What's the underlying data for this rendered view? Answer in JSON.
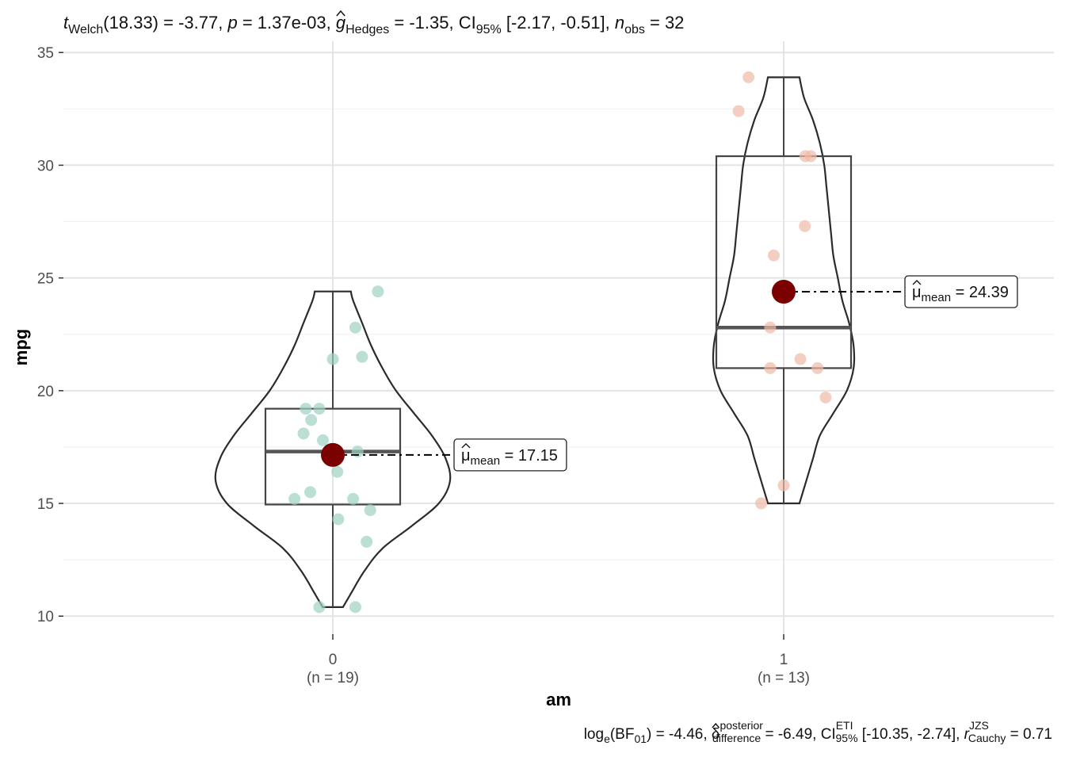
{
  "chart_data": {
    "type": "violin-box-scatter",
    "subtitle": {
      "t_part": "t",
      "t_sub": "Welch",
      "t_rest": "(18.33) = -3.77, ",
      "p_part": "p",
      "p_rest": " = 1.37e-03, ",
      "g_part": "g",
      "g_sub": "Hedges",
      "g_rest": " = -1.35, CI",
      "ci_sub": "95%",
      "ci_rest": " [-2.17, -0.51], ",
      "n_part": "n",
      "n_sub": "obs",
      "n_rest": " = 32"
    },
    "caption": {
      "part1": "log",
      "sub1": "e",
      "part2": "(BF",
      "sub2": "01",
      "part3": ") = -4.46, ",
      "delta": "δ",
      "delta_sup": "posterior",
      "delta_sub": "difference",
      "part4": " = -6.49, CI",
      "ci_sup": "ETI",
      "ci_sub": "95%",
      "part5": " [-10.35, -2.74], ",
      "r": "r",
      "r_sup": "JZS",
      "r_sub": "Cauchy",
      "part6": " = 0.71"
    },
    "xlabel": "am",
    "ylabel": "mpg",
    "ylim": [
      9.2,
      35.5
    ],
    "yticks": [
      10,
      15,
      20,
      25,
      30,
      35
    ],
    "grid": true,
    "groups": [
      {
        "category": "0",
        "n_label": "(n = 19)",
        "color": "#9fd2c3",
        "mean": 17.15,
        "mean_label_mu": "μ",
        "mean_label_sub": "mean",
        "mean_label_value": " = 17.15",
        "box": {
          "q1": 14.95,
          "median": 17.3,
          "q3": 19.2,
          "whisker_low": 10.4,
          "whisker_high": 24.4
        },
        "violin": [
          [
            10.4,
            0.045
          ],
          [
            11,
            0.08
          ],
          [
            12,
            0.14
          ],
          [
            13,
            0.22
          ],
          [
            14,
            0.35
          ],
          [
            15,
            0.47
          ],
          [
            16,
            0.52
          ],
          [
            17,
            0.5
          ],
          [
            18,
            0.44
          ],
          [
            19,
            0.36
          ],
          [
            20,
            0.28
          ],
          [
            21,
            0.22
          ],
          [
            22,
            0.17
          ],
          [
            23,
            0.13
          ],
          [
            24,
            0.09
          ],
          [
            24.4,
            0.08
          ]
        ],
        "points": [
          [
            0.1,
            24.4
          ],
          [
            0.05,
            22.8
          ],
          [
            0.065,
            21.5
          ],
          [
            0.0,
            21.4
          ],
          [
            -0.06,
            19.2
          ],
          [
            -0.03,
            19.2
          ],
          [
            -0.048,
            18.7
          ],
          [
            -0.065,
            18.1
          ],
          [
            -0.022,
            17.8
          ],
          [
            0.055,
            17.3
          ],
          [
            0.01,
            16.4
          ],
          [
            -0.05,
            15.5
          ],
          [
            0.045,
            15.2
          ],
          [
            -0.085,
            15.2
          ],
          [
            0.083,
            14.7
          ],
          [
            0.012,
            14.3
          ],
          [
            0.075,
            13.3
          ],
          [
            -0.03,
            10.4
          ],
          [
            0.05,
            10.4
          ]
        ]
      },
      {
        "category": "1",
        "n_label": "(n = 13)",
        "color": "#f0bba6",
        "mean": 24.39,
        "mean_label_mu": "μ",
        "mean_label_sub": "mean",
        "mean_label_value": " = 24.39",
        "box": {
          "q1": 21.0,
          "median": 22.8,
          "q3": 30.4,
          "whisker_low": 15.0,
          "whisker_high": 33.9
        },
        "violin": [
          [
            15,
            0.07
          ],
          [
            16,
            0.1
          ],
          [
            17,
            0.13
          ],
          [
            18,
            0.16
          ],
          [
            19,
            0.22
          ],
          [
            20,
            0.28
          ],
          [
            21,
            0.31
          ],
          [
            22,
            0.31
          ],
          [
            23,
            0.29
          ],
          [
            24,
            0.26
          ],
          [
            25,
            0.24
          ],
          [
            26,
            0.22
          ],
          [
            27,
            0.21
          ],
          [
            28,
            0.2
          ],
          [
            29,
            0.19
          ],
          [
            30,
            0.18
          ],
          [
            31,
            0.16
          ],
          [
            32,
            0.13
          ],
          [
            33,
            0.09
          ],
          [
            33.9,
            0.07
          ]
        ],
        "points": [
          [
            -0.078,
            33.9
          ],
          [
            -0.1,
            32.4
          ],
          [
            0.048,
            30.4
          ],
          [
            0.06,
            30.4
          ],
          [
            0.047,
            27.3
          ],
          [
            -0.022,
            26.0
          ],
          [
            -0.03,
            22.8
          ],
          [
            0.037,
            21.4
          ],
          [
            -0.03,
            21.0
          ],
          [
            0.075,
            21.0
          ],
          [
            0.093,
            19.7
          ],
          [
            0.0,
            15.8
          ],
          [
            -0.05,
            15.0
          ]
        ]
      }
    ],
    "colors": {
      "mean_point": "#7b0000",
      "outline": "#2b2b2b",
      "grid": "#e6e6e6"
    }
  }
}
